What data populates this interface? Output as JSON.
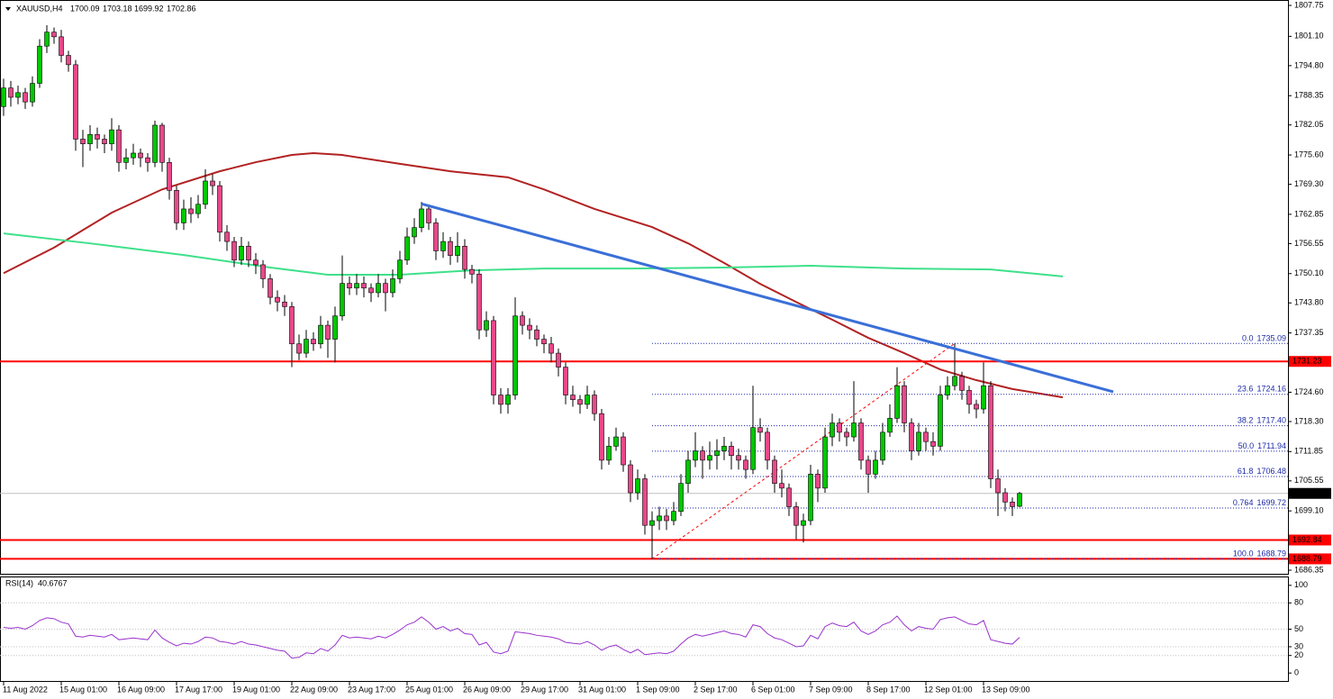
{
  "chart_data": {
    "type": "candlestick",
    "symbol": "XAUUSD,H4",
    "categories": [
      "11 Aug 2022",
      null,
      null,
      null,
      null,
      null,
      null,
      null,
      "15 Aug 01:00",
      null,
      null,
      null,
      null,
      null,
      null,
      null,
      "16 Aug 09:00",
      null,
      null,
      null,
      null,
      null,
      null,
      null,
      "17 Aug 17:00",
      null,
      null,
      null,
      null,
      null,
      null,
      null,
      "19 Aug 01:00",
      null,
      null,
      null,
      null,
      null,
      null,
      null,
      "22 Aug 09:00",
      null,
      null,
      null,
      null,
      null,
      null,
      null,
      "23 Aug 17:00",
      null,
      null,
      null,
      null,
      null,
      null,
      null,
      "25 Aug 01:00",
      null,
      null,
      null,
      null,
      null,
      null,
      null,
      "26 Aug 09:00",
      null,
      null,
      null,
      null,
      null,
      null,
      null,
      "29 Aug 17:00",
      null,
      null,
      null,
      null,
      null,
      null,
      null,
      "31 Aug 01:00",
      null,
      null,
      null,
      null,
      null,
      null,
      null,
      "1 Sep 09:00",
      null,
      null,
      null,
      null,
      null,
      null,
      null,
      "2 Sep 17:00",
      null,
      null,
      null,
      null,
      null,
      null,
      null,
      "6 Sep 01:00",
      null,
      null,
      null,
      null,
      null,
      null,
      null,
      "7 Sep 09:00",
      null,
      null,
      null,
      null,
      null,
      null,
      null,
      "8 Sep 17:00",
      null,
      null,
      null,
      null,
      null,
      null,
      null,
      "12 Sep 01:00",
      null,
      null,
      null,
      null,
      null,
      null,
      null,
      "13 Sep 09:00",
      null,
      null,
      null,
      null,
      null
    ],
    "ohlc": [
      [
        1786,
        1792,
        1784,
        1790
      ],
      [
        1790,
        1791.5,
        1786,
        1788
      ],
      [
        1788,
        1790.5,
        1786.5,
        1789
      ],
      [
        1789,
        1790,
        1785.5,
        1787
      ],
      [
        1787,
        1792.5,
        1786,
        1791
      ],
      [
        1791,
        1800.5,
        1790,
        1799
      ],
      [
        1799,
        1803.5,
        1797.5,
        1802
      ],
      [
        1802,
        1803,
        1799.5,
        1801
      ],
      [
        1801,
        1802.5,
        1795.5,
        1797
      ],
      [
        1797,
        1798,
        1793.5,
        1795
      ],
      [
        1795,
        1796,
        1776.5,
        1779
      ],
      [
        1779,
        1781,
        1773,
        1778
      ],
      [
        1778,
        1782,
        1776.5,
        1780
      ],
      [
        1780,
        1781.5,
        1777,
        1779
      ],
      [
        1779,
        1780,
        1776,
        1778
      ],
      [
        1778,
        1783.5,
        1776.5,
        1781
      ],
      [
        1781,
        1782,
        1772,
        1774
      ],
      [
        1774,
        1777,
        1772.5,
        1775
      ],
      [
        1775,
        1778,
        1773.5,
        1776
      ],
      [
        1776,
        1777,
        1773,
        1775
      ],
      [
        1775,
        1776,
        1772,
        1774
      ],
      [
        1774,
        1783,
        1773,
        1782
      ],
      [
        1782,
        1782.5,
        1772,
        1774
      ],
      [
        1774,
        1775,
        1766,
        1768
      ],
      [
        1768,
        1769,
        1759.5,
        1761
      ],
      [
        1761,
        1766,
        1759.5,
        1764
      ],
      [
        1764,
        1766.5,
        1761,
        1763
      ],
      [
        1763,
        1767,
        1762,
        1765
      ],
      [
        1765,
        1772.5,
        1764,
        1770
      ],
      [
        1770,
        1771.5,
        1767,
        1769
      ],
      [
        1769,
        1770,
        1757,
        1759
      ],
      [
        1759,
        1760.5,
        1755,
        1757
      ],
      [
        1757,
        1758,
        1751.5,
        1753
      ],
      [
        1753,
        1758,
        1752,
        1756
      ],
      [
        1756,
        1757,
        1751.5,
        1753
      ],
      [
        1753,
        1754.5,
        1750,
        1752
      ],
      [
        1752,
        1753,
        1747,
        1749
      ],
      [
        1749,
        1750,
        1743.5,
        1745
      ],
      [
        1745,
        1746.5,
        1742,
        1744
      ],
      [
        1744,
        1745.5,
        1741,
        1743
      ],
      [
        1743,
        1744,
        1730,
        1735
      ],
      [
        1735,
        1737,
        1731.5,
        1733
      ],
      [
        1733,
        1738,
        1732,
        1736
      ],
      [
        1736,
        1737.5,
        1733.5,
        1735
      ],
      [
        1735,
        1741,
        1734,
        1739
      ],
      [
        1739,
        1740,
        1732,
        1736
      ],
      [
        1736,
        1743,
        1731,
        1741
      ],
      [
        1741,
        1754,
        1740,
        1748
      ],
      [
        1748,
        1749.5,
        1745.5,
        1747
      ],
      [
        1747,
        1750,
        1745.5,
        1748
      ],
      [
        1748,
        1749.5,
        1745,
        1747
      ],
      [
        1747,
        1748,
        1744,
        1746
      ],
      [
        1746,
        1750,
        1745,
        1748
      ],
      [
        1748,
        1749,
        1742,
        1746
      ],
      [
        1746,
        1751,
        1745,
        1749
      ],
      [
        1749,
        1755,
        1748,
        1753
      ],
      [
        1753,
        1760,
        1752,
        1758
      ],
      [
        1758,
        1762,
        1756.5,
        1760
      ],
      [
        1760,
        1765.5,
        1759,
        1764
      ],
      [
        1764,
        1764.5,
        1759.5,
        1761
      ],
      [
        1761,
        1762,
        1753,
        1755
      ],
      [
        1755,
        1759,
        1753.5,
        1757
      ],
      [
        1757,
        1758,
        1752,
        1754
      ],
      [
        1754,
        1759,
        1752.5,
        1756
      ],
      [
        1756,
        1757.5,
        1749,
        1751
      ],
      [
        1751,
        1752,
        1748,
        1750
      ],
      [
        1750,
        1751,
        1736,
        1738
      ],
      [
        1738,
        1742,
        1736.5,
        1740
      ],
      [
        1740,
        1741,
        1722,
        1724
      ],
      [
        1724,
        1725.5,
        1720,
        1722
      ],
      [
        1722,
        1725.5,
        1720,
        1724
      ],
      [
        1724,
        1745,
        1723,
        1741
      ],
      [
        1741,
        1742,
        1737,
        1739
      ],
      [
        1739,
        1740.5,
        1736,
        1738
      ],
      [
        1738,
        1739,
        1734.5,
        1736
      ],
      [
        1736,
        1737,
        1733,
        1735
      ],
      [
        1735,
        1736.5,
        1731,
        1733
      ],
      [
        1733,
        1734,
        1728,
        1730
      ],
      [
        1730,
        1731,
        1722,
        1724
      ],
      [
        1724,
        1726,
        1721.5,
        1723
      ],
      [
        1723,
        1724,
        1720,
        1722
      ],
      [
        1722,
        1726,
        1721,
        1724
      ],
      [
        1724,
        1725,
        1718.5,
        1720
      ],
      [
        1720,
        1721,
        1708,
        1710
      ],
      [
        1710,
        1715,
        1709,
        1713
      ],
      [
        1713,
        1717,
        1712,
        1715
      ],
      [
        1715,
        1716,
        1707.5,
        1709
      ],
      [
        1709,
        1710,
        1701,
        1703
      ],
      [
        1703,
        1708,
        1701.5,
        1706
      ],
      [
        1706,
        1707,
        1694,
        1696
      ],
      [
        1696,
        1699,
        1688.79,
        1697
      ],
      [
        1697,
        1700,
        1695,
        1698
      ],
      [
        1698,
        1699.5,
        1695,
        1697
      ],
      [
        1697,
        1701,
        1696,
        1699
      ],
      [
        1699,
        1707,
        1698,
        1705
      ],
      [
        1705,
        1712,
        1703,
        1710
      ],
      [
        1710,
        1716,
        1708.5,
        1712
      ],
      [
        1712,
        1713,
        1706,
        1710
      ],
      [
        1710,
        1714,
        1708,
        1711
      ],
      [
        1711,
        1714.5,
        1708,
        1712
      ],
      [
        1712,
        1715,
        1710,
        1713
      ],
      [
        1713,
        1714,
        1708,
        1711
      ],
      [
        1711,
        1712.5,
        1708,
        1710
      ],
      [
        1710,
        1711,
        1706,
        1708
      ],
      [
        1708,
        1726,
        1707,
        1717
      ],
      [
        1717,
        1719,
        1714,
        1716
      ],
      [
        1716,
        1717,
        1708,
        1710
      ],
      [
        1710,
        1711,
        1703,
        1705
      ],
      [
        1705,
        1708,
        1702,
        1704
      ],
      [
        1704,
        1705,
        1698,
        1700
      ],
      [
        1700,
        1701,
        1693,
        1696
      ],
      [
        1696,
        1698.5,
        1692.3,
        1697
      ],
      [
        1697,
        1709,
        1696,
        1707
      ],
      [
        1707,
        1708,
        1701,
        1704
      ],
      [
        1704,
        1717,
        1703,
        1715
      ],
      [
        1715,
        1720,
        1713,
        1718
      ],
      [
        1718,
        1719,
        1714,
        1716
      ],
      [
        1716,
        1717,
        1713,
        1715
      ],
      [
        1715,
        1727,
        1714,
        1718
      ],
      [
        1718,
        1719,
        1708,
        1710
      ],
      [
        1710,
        1711,
        1703,
        1707
      ],
      [
        1707,
        1712,
        1706,
        1710
      ],
      [
        1710,
        1718,
        1709,
        1716
      ],
      [
        1716,
        1722,
        1715,
        1719
      ],
      [
        1719,
        1730,
        1718,
        1726
      ],
      [
        1726,
        1727,
        1716,
        1718
      ],
      [
        1718,
        1719,
        1710,
        1712
      ],
      [
        1712,
        1718,
        1711,
        1716
      ],
      [
        1716,
        1717,
        1712,
        1714
      ],
      [
        1714,
        1716,
        1711,
        1713
      ],
      [
        1713,
        1726,
        1712,
        1724
      ],
      [
        1724,
        1728,
        1723,
        1726
      ],
      [
        1726,
        1735.09,
        1725,
        1728
      ],
      [
        1728,
        1729,
        1723,
        1725
      ],
      [
        1725,
        1726,
        1720,
        1722
      ],
      [
        1722,
        1723,
        1719,
        1721
      ],
      [
        1721,
        1731,
        1720,
        1726
      ],
      [
        1726,
        1727,
        1704,
        1706
      ],
      [
        1706,
        1708,
        1698,
        1703
      ],
      [
        1703,
        1704,
        1699,
        1701
      ],
      [
        1701,
        1702,
        1698,
        1700
      ],
      [
        1700.09,
        1703.18,
        1699.92,
        1702.86
      ]
    ],
    "colors": {
      "up": "#00c800",
      "down": "#e8488a",
      "wick": "#000000",
      "current": "#000000"
    },
    "ylim": [
      1685.58,
      1808.91
    ],
    "yticks": [
      1807.75,
      {
        "value": 1801.1,
        "label": "1801.10"
      },
      {
        "value": 1794.8,
        "label": "1794.80"
      },
      1788.35,
      1782.05,
      {
        "value": 1775.6,
        "label": "1775.60"
      },
      {
        "value": 1769.3,
        "label": "1769.30"
      },
      1762.85,
      1756.55,
      {
        "value": 1750.1,
        "label": "1750.10"
      },
      {
        "value": 1743.8,
        "label": "1743.80"
      },
      1737.35,
      {
        "value": 1724.6,
        "label": "1724.60"
      },
      {
        "value": 1718.3,
        "label": "1718.30"
      },
      1711.85,
      1705.55,
      {
        "value": 1699.1,
        "label": "1699.10"
      },
      1686.35
    ],
    "moving_averages": [
      {
        "color": "#b22222",
        "x": [
          0,
          7,
          15,
          22,
          30,
          35,
          40,
          43,
          47,
          55,
          62,
          70,
          75,
          82,
          90,
          95,
          100,
          105,
          110,
          115,
          120,
          125,
          130,
          135,
          140,
          147
        ],
        "values": [
          1750.2,
          1755.7,
          1763.2,
          1768.2,
          1772.1,
          1774.05,
          1775.6,
          1776.0,
          1775.6,
          1773.7,
          1772.1,
          1770.8,
          1768.2,
          1764.0,
          1760.1,
          1756.6,
          1752.4,
          1747.9,
          1744.0,
          1740.2,
          1736.3,
          1733.0,
          1729.5,
          1727.2,
          1725.3,
          1723.5
        ]
      },
      {
        "color": "#3ee08a",
        "x": [
          0,
          12,
          25,
          37,
          45,
          55,
          65,
          75,
          87,
          100,
          112,
          125,
          137,
          147
        ],
        "values": [
          1758.75,
          1756.6,
          1754.1,
          1751.4,
          1749.85,
          1749.85,
          1750.8,
          1751.2,
          1751.2,
          1751.4,
          1751.8,
          1751.2,
          1751.0,
          1749.5
        ]
      }
    ],
    "trendline": {
      "color": "#3a6fd8",
      "x": [
        58,
        154
      ],
      "values": [
        1765.1,
        1724.7
      ]
    },
    "levels": [
      {
        "value": 1731.23,
        "color": "#ff0000"
      },
      {
        "value": 1692.84,
        "color": "#ff0000"
      },
      {
        "value": 1688.79,
        "color": "#ff0000"
      }
    ],
    "fibonacci": {
      "x": [
        90,
        132
      ],
      "color": "#ff0000",
      "level_color": "#1c2aa8",
      "levels": [
        {
          "ratio": "0.0",
          "price": 1735.09
        },
        {
          "ratio": "23.6",
          "price": 1724.16
        },
        {
          "ratio": "38.2",
          "price": {
            "value": 1717.4,
            "label": "1717.40"
          }
        },
        {
          "ratio": "50.0",
          "price": 1711.94
        },
        {
          "ratio": "61.8",
          "price": 1706.48
        },
        {
          "ratio": "0.764",
          "price": 1699.72
        },
        {
          "ratio": "100.0",
          "price": 1688.79
        }
      ]
    },
    "rsi": {
      "title": "RSI(14)",
      "color": "#9932cc",
      "ylim": [
        -10.1,
        110.1
      ],
      "yticks": [
        0,
        20,
        30,
        50,
        80,
        100
      ],
      "values": [
        52,
        51,
        52,
        50,
        54,
        60,
        63,
        62,
        58,
        56,
        42,
        41,
        43,
        42,
        41,
        44,
        38,
        39,
        40,
        39,
        38,
        49,
        40,
        35,
        31,
        34,
        33,
        36,
        41,
        40,
        36,
        35,
        33,
        36,
        33,
        32,
        30,
        28,
        26,
        25,
        17,
        18,
        23,
        22,
        28,
        25,
        32,
        43,
        40,
        41,
        40,
        39,
        42,
        40,
        44,
        49,
        55,
        58,
        64,
        58,
        50,
        53,
        48,
        51,
        45,
        44,
        32,
        35,
        24,
        22,
        25,
        47,
        46,
        45,
        43,
        42,
        41,
        39,
        35,
        34,
        33,
        36,
        32,
        26,
        30,
        32,
        27,
        23,
        27,
        21,
        22,
        23,
        22,
        25,
        33,
        40,
        44,
        42,
        44,
        46,
        48,
        45,
        44,
        41,
        55,
        53,
        45,
        40,
        38,
        34,
        30,
        31,
        43,
        39,
        53,
        57,
        54,
        53,
        58,
        48,
        44,
        48,
        55,
        58,
        65,
        55,
        48,
        53,
        51,
        50,
        61,
        63,
        64,
        60,
        56,
        55,
        60,
        38,
        36,
        34,
        33,
        40.6767
      ]
    }
  }
}
